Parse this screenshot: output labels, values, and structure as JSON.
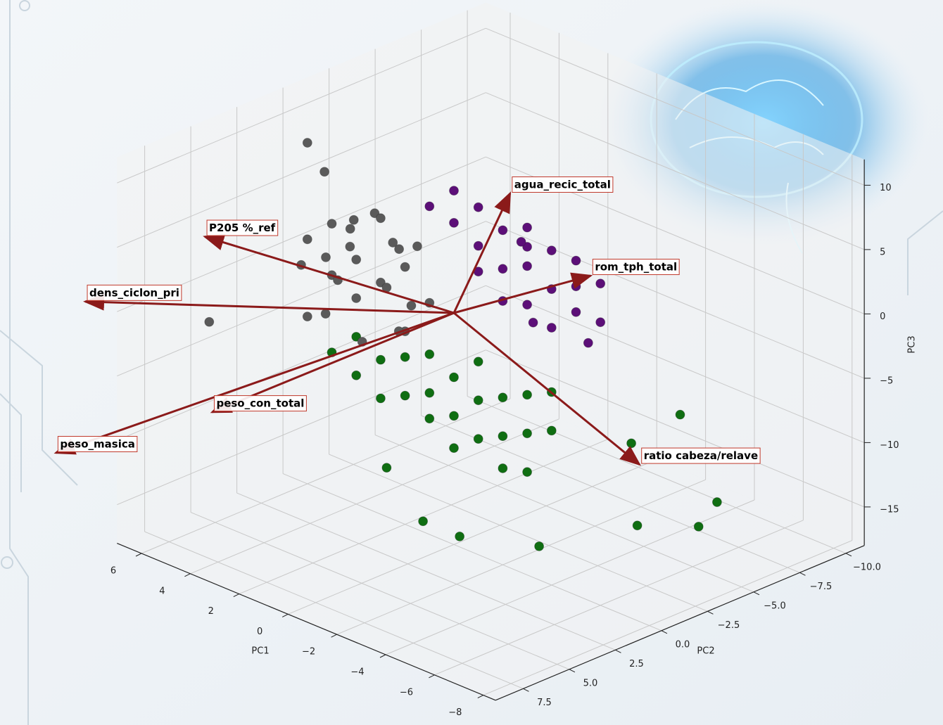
{
  "chart_data": {
    "type": "scatter3d",
    "xlabel": "PC1",
    "ylabel": "PC2",
    "zlabel": "PC3",
    "xlim": [
      -8.5,
      7
    ],
    "ylim": [
      -11,
      9
    ],
    "zlim": [
      -18,
      12
    ],
    "xticks": [
      6,
      4,
      2,
      0,
      {
        "value": -2,
        "label": "−2"
      },
      {
        "value": -4,
        "label": "−4"
      },
      {
        "value": -6,
        "label": "−6"
      },
      {
        "value": -8,
        "label": "−8"
      }
    ],
    "yticks": [
      {
        "value": -10,
        "label": "−10.0"
      },
      {
        "value": -7.5,
        "label": "−7.5"
      },
      {
        "value": -5,
        "label": "−5.0"
      },
      {
        "value": -2.5,
        "label": "−2.5"
      },
      {
        "value": 0,
        "label": "0.0"
      },
      2.5,
      {
        "value": 5,
        "label": "5.0"
      },
      7.5
    ],
    "zticks": [
      10,
      5,
      0,
      {
        "value": -5,
        "label": "−5"
      },
      {
        "value": -10,
        "label": "−10"
      },
      {
        "value": -15,
        "label": "−15"
      }
    ],
    "grid": true,
    "series": [
      {
        "color": "#0f6e12",
        "x": [
          0,
          1,
          2,
          3,
          4,
          -1,
          -2,
          -3,
          -4,
          0,
          1,
          2,
          -1,
          -2,
          -3,
          3,
          4,
          -4,
          0,
          -2,
          1,
          -1,
          5,
          -3,
          -7,
          -1,
          -2.5,
          -7,
          -7,
          -5,
          -6,
          -5,
          2
        ],
        "y": [
          0,
          0,
          0,
          0,
          0,
          0,
          0,
          0,
          0,
          0,
          0,
          0,
          0,
          0,
          0,
          0,
          0,
          0,
          0,
          0,
          0,
          0,
          0,
          0,
          -5,
          3,
          3,
          -3,
          -4,
          -3,
          -2,
          2,
          1
        ],
        "z": [
          -5,
          -4,
          -5,
          -6,
          -5,
          -6,
          -5,
          -4,
          -3,
          -8,
          -9,
          -8,
          -9,
          -8,
          -7,
          -9,
          -8,
          -6,
          -10.5,
          -10.5,
          -7,
          -3,
          -7,
          -10,
          -12.2,
          -13.6,
          -13.6,
          -4.2,
          -13.5,
          -8,
          -13,
          -13,
          -13
        ]
      },
      {
        "color": "#5c0f78",
        "x": [
          -1,
          -2,
          -3,
          -4,
          -5,
          -2,
          -3,
          -1,
          -4,
          0,
          1,
          -5,
          -6,
          -3,
          -2,
          -4,
          -5,
          -1,
          -3,
          -6,
          -2,
          0,
          -4,
          -5.5
        ],
        "y": [
          0,
          0,
          0,
          0,
          0,
          0,
          0,
          0,
          0,
          0,
          0,
          0,
          0,
          0,
          0,
          0,
          0,
          0,
          0,
          0,
          -1,
          0,
          1,
          0
        ],
        "z": [
          6,
          5,
          6,
          5,
          6,
          8,
          9,
          9,
          8,
          7,
          7.5,
          4,
          4,
          3,
          2.5,
          2,
          8,
          4,
          7.5,
          7,
          6.5,
          9.5,
          3,
          2
        ]
      },
      {
        "color": "#5a5a5a",
        "x": [
          3,
          4,
          2,
          5,
          3.5,
          2.5,
          6,
          4.5,
          1.5,
          3,
          5,
          2,
          4,
          6,
          1,
          3,
          5.5,
          2,
          4,
          3,
          5,
          1.5,
          4,
          6,
          2.5,
          7,
          6,
          5.3,
          4.1
        ],
        "y": [
          0,
          0,
          0,
          0,
          1,
          -1,
          0,
          1,
          0,
          1,
          -1,
          1,
          -1,
          0,
          0,
          0,
          1,
          0,
          0,
          -1,
          0,
          1,
          1,
          -1,
          0,
          4,
          0,
          0,
          0
        ],
        "z": [
          0,
          1,
          2,
          -1,
          3,
          -2,
          1,
          -3,
          4,
          -4,
          2,
          1,
          4,
          -5,
          0,
          5,
          0,
          -3,
          -2,
          2,
          3,
          -2,
          0,
          -1,
          3.5,
          -3.8,
          8.5,
          6.8,
          4
        ]
      }
    ],
    "loadings": [
      {
        "label": "agua_recic_total",
        "x": -2.3,
        "y": 0,
        "z": 11.1
      },
      {
        "label": "P205 %_ref",
        "x": 10.2,
        "y": 0,
        "z": -2.1
      },
      {
        "label": "dens_ciclon_pri",
        "x": 15.1,
        "y": 0,
        "z": -11
      },
      {
        "label": "peso_con_total",
        "x": 9.9,
        "y": 0,
        "z": -15.5
      },
      {
        "label": "peso_masica",
        "x": 16.3,
        "y": 0,
        "z": -23.7
      },
      {
        "label": "rom_tph_total",
        "x": -5.6,
        "y": 0,
        "z": 7.3
      },
      {
        "label": "ratio cabeza/relave",
        "x": -7.6,
        "y": 0,
        "z": -5.8
      }
    ]
  }
}
